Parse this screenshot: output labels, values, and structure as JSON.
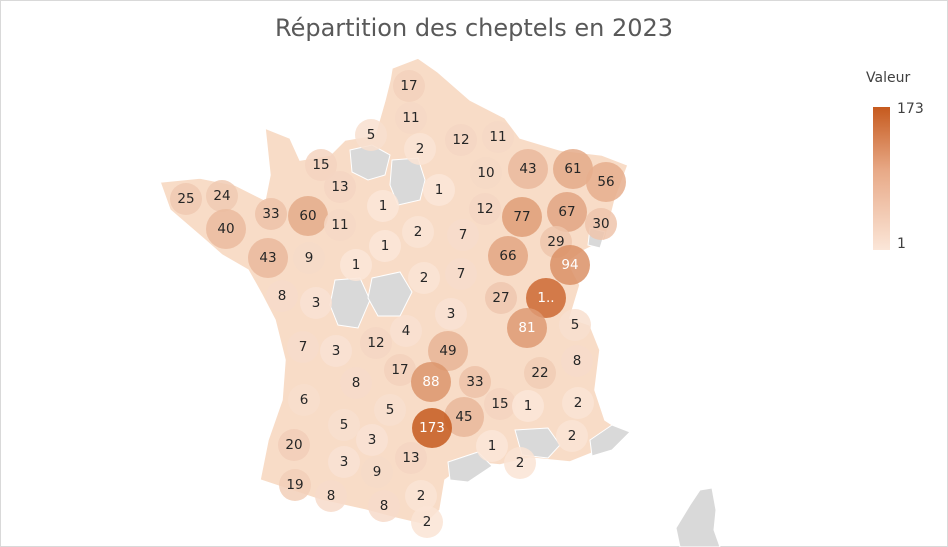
{
  "chart_data": {
    "type": "choropleth",
    "title": "Répartition des cheptels en 2023",
    "legend": {
      "title": "Valeur",
      "min_label": "1",
      "max_label": "173",
      "placement": "top-right"
    },
    "scale": {
      "min": 1,
      "max": 173,
      "color_min": "#fbe6d8",
      "color_max": "#c65a1e",
      "no_data_color": "#d9d9d9"
    },
    "regions": [
      {
        "label": "17",
        "value": 17
      },
      {
        "label": "11",
        "value": 11
      },
      {
        "label": "5",
        "value": 5
      },
      {
        "label": "2",
        "value": 2
      },
      {
        "label": "12",
        "value": 12
      },
      {
        "label": "11",
        "value": 11
      },
      {
        "label": "15",
        "value": 15
      },
      {
        "label": "13",
        "value": 13
      },
      {
        "label": "43",
        "value": 43
      },
      {
        "label": "61",
        "value": 61
      },
      {
        "label": "56",
        "value": 56
      },
      {
        "label": "10",
        "value": 10
      },
      {
        "label": "1",
        "value": 1
      },
      {
        "label": "25",
        "value": 25
      },
      {
        "label": "24",
        "value": 24
      },
      {
        "label": "33",
        "value": 33
      },
      {
        "label": "60",
        "value": 60
      },
      {
        "label": "11",
        "value": 11
      },
      {
        "label": "1",
        "value": 1
      },
      {
        "label": "12",
        "value": 12
      },
      {
        "label": "77",
        "value": 77
      },
      {
        "label": "67",
        "value": 67
      },
      {
        "label": "30",
        "value": 30
      },
      {
        "label": "40",
        "value": 40
      },
      {
        "label": "2",
        "value": 2
      },
      {
        "label": "7",
        "value": 7
      },
      {
        "label": "29",
        "value": 29
      },
      {
        "label": "43",
        "value": 43
      },
      {
        "label": "9",
        "value": 9
      },
      {
        "label": "1",
        "value": 1
      },
      {
        "label": "1",
        "value": 1
      },
      {
        "label": "66",
        "value": 66
      },
      {
        "label": "94",
        "value": 94
      },
      {
        "label": "2",
        "value": 2
      },
      {
        "label": "7",
        "value": 7
      },
      {
        "label": "8",
        "value": 8
      },
      {
        "label": "3",
        "value": 3
      },
      {
        "label": "27",
        "value": 27
      },
      {
        "label": "1..",
        "value": 150
      },
      {
        "label": "3",
        "value": 3
      },
      {
        "label": "4",
        "value": 4
      },
      {
        "label": "12",
        "value": 12
      },
      {
        "label": "81",
        "value": 81
      },
      {
        "label": "5",
        "value": 5
      },
      {
        "label": "7",
        "value": 7
      },
      {
        "label": "3",
        "value": 3
      },
      {
        "label": "49",
        "value": 49
      },
      {
        "label": "8",
        "value": 8
      },
      {
        "label": "17",
        "value": 17
      },
      {
        "label": "88",
        "value": 88
      },
      {
        "label": "33",
        "value": 33
      },
      {
        "label": "22",
        "value": 22
      },
      {
        "label": "8",
        "value": 8
      },
      {
        "label": "6",
        "value": 6
      },
      {
        "label": "5",
        "value": 5
      },
      {
        "label": "45",
        "value": 45
      },
      {
        "label": "15",
        "value": 15
      },
      {
        "label": "1",
        "value": 1
      },
      {
        "label": "2",
        "value": 2
      },
      {
        "label": "173",
        "value": 173
      },
      {
        "label": "5",
        "value": 5
      },
      {
        "label": "20",
        "value": 20
      },
      {
        "label": "3",
        "value": 3
      },
      {
        "label": "1",
        "value": 1
      },
      {
        "label": "2",
        "value": 2
      },
      {
        "label": "13",
        "value": 13
      },
      {
        "label": "3",
        "value": 3
      },
      {
        "label": "9",
        "value": 9
      },
      {
        "label": "2",
        "value": 2
      },
      {
        "label": "19",
        "value": 19
      },
      {
        "label": "8",
        "value": 8
      },
      {
        "label": "2",
        "value": 2
      },
      {
        "label": "8",
        "value": 8
      },
      {
        "label": "2",
        "value": 2
      }
    ]
  }
}
